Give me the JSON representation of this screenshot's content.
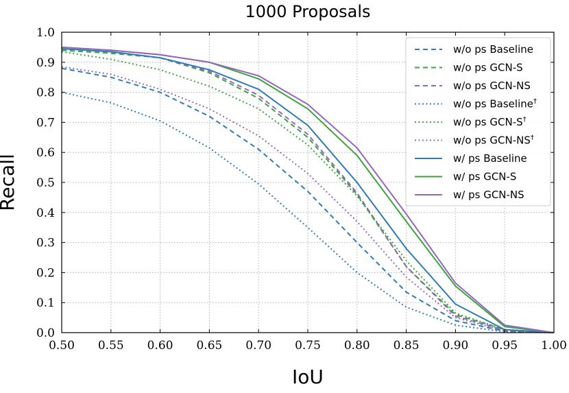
{
  "chart_data": {
    "type": "line",
    "title": "1000 Proposals",
    "xlabel": "IoU",
    "ylabel": "Recall",
    "xlim": [
      0.5,
      1.0
    ],
    "ylim": [
      0.0,
      1.0
    ],
    "x_ticks": [
      "0.50",
      "0.55",
      "0.60",
      "0.65",
      "0.70",
      "0.75",
      "0.80",
      "0.85",
      "0.90",
      "0.95",
      "1.00"
    ],
    "y_ticks": [
      "0.0",
      "0.1",
      "0.2",
      "0.3",
      "0.4",
      "0.5",
      "0.6",
      "0.7",
      "0.8",
      "0.9",
      "1.0"
    ],
    "grid": true,
    "legend_position": "top-right",
    "x": [
      0.5,
      0.55,
      0.6,
      0.65,
      0.7,
      0.75,
      0.8,
      0.85,
      0.9,
      0.95,
      1.0
    ],
    "colors": {
      "blue": "#2f7ab8",
      "green": "#3aa43a",
      "purple": "#9467bd"
    },
    "series": [
      {
        "name": "w/o ps Baseline",
        "dagger": false,
        "color": "#2f7ab8",
        "style": "dashed",
        "values": [
          0.88,
          0.85,
          0.8,
          0.72,
          0.61,
          0.47,
          0.3,
          0.135,
          0.04,
          0.005,
          0.0
        ]
      },
      {
        "name": "w/o ps GCN-S",
        "dagger": false,
        "color": "#3aa43a",
        "style": "dashed",
        "values": [
          0.94,
          0.93,
          0.915,
          0.865,
          0.78,
          0.65,
          0.46,
          0.22,
          0.06,
          0.01,
          0.0
        ]
      },
      {
        "name": "w/o ps GCN-NS",
        "dagger": false,
        "color": "#9467bd",
        "style": "dashed",
        "values": [
          0.945,
          0.935,
          0.915,
          0.87,
          0.79,
          0.66,
          0.465,
          0.22,
          0.055,
          0.008,
          0.0
        ]
      },
      {
        "name": "w/o ps Baseline",
        "dagger": true,
        "color": "#2f7ab8",
        "style": "dotted",
        "values": [
          0.8,
          0.765,
          0.705,
          0.615,
          0.495,
          0.35,
          0.2,
          0.085,
          0.025,
          0.003,
          0.0
        ]
      },
      {
        "name": "w/o ps GCN-S",
        "dagger": true,
        "color": "#3aa43a",
        "style": "dotted",
        "values": [
          0.935,
          0.91,
          0.875,
          0.82,
          0.745,
          0.625,
          0.455,
          0.24,
          0.065,
          0.01,
          0.0
        ]
      },
      {
        "name": "w/o ps GCN-NS",
        "dagger": true,
        "color": "#9467bd",
        "style": "dotted",
        "values": [
          0.885,
          0.86,
          0.81,
          0.745,
          0.655,
          0.53,
          0.37,
          0.185,
          0.05,
          0.006,
          0.0
        ]
      },
      {
        "name": "w/ ps Baseline",
        "dagger": false,
        "color": "#2f7ab8",
        "style": "solid",
        "values": [
          0.945,
          0.935,
          0.915,
          0.875,
          0.81,
          0.69,
          0.5,
          0.28,
          0.095,
          0.01,
          0.0
        ]
      },
      {
        "name": "w/ ps GCN-S",
        "dagger": false,
        "color": "#3aa43a",
        "style": "solid",
        "values": [
          0.95,
          0.94,
          0.925,
          0.9,
          0.845,
          0.745,
          0.59,
          0.37,
          0.155,
          0.02,
          0.0
        ]
      },
      {
        "name": "w/ ps GCN-NS",
        "dagger": false,
        "color": "#9467bd",
        "style": "solid",
        "values": [
          0.95,
          0.94,
          0.925,
          0.9,
          0.855,
          0.76,
          0.615,
          0.395,
          0.165,
          0.025,
          0.0
        ]
      }
    ]
  }
}
